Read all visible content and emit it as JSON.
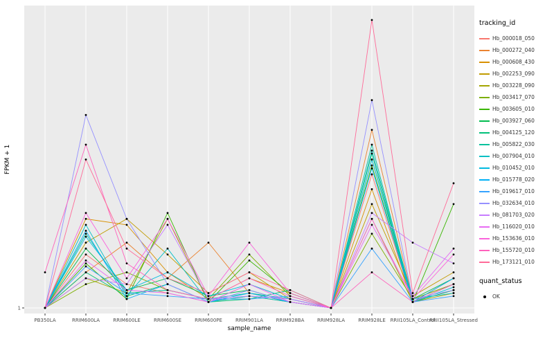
{
  "chart_data": {
    "type": "line",
    "title": "",
    "xlabel": "sample_name",
    "ylabel": "FPKM + 1",
    "y_ticks": [
      "1"
    ],
    "grid": true,
    "legend_position": "right",
    "note": "values are relative heights above the y=1 baseline (only tick labeled on axis), 0 = baseline, 1 = panel top",
    "colors": {
      "panel_bg": "#EBEBEB",
      "grid": "#FFFFFF",
      "point": "#000000",
      "tick_text": "#4D4D4D"
    },
    "categories": [
      "PB350LA",
      "RRIM600LA",
      "RRIM600LE",
      "RRIM600SE",
      "RRIM600PE",
      "RRIM901LA",
      "RRIM928BA",
      "RRIM928LA",
      "RRIM928LE",
      "RRII105LA_Control",
      "RRII105LA_Stressed"
    ],
    "series": [
      {
        "name": "Hb_000018_050",
        "color": "#F8766D",
        "values": [
          0,
          0.18,
          0.08,
          0.05,
          0.02,
          0.08,
          0.03,
          0,
          0.45,
          0.02,
          0.1
        ]
      },
      {
        "name": "Hb_000272_040",
        "color": "#EA8331",
        "values": [
          0,
          0.12,
          0.22,
          0.1,
          0.22,
          0.05,
          0.02,
          0,
          0.6,
          0.03,
          0.08
        ]
      },
      {
        "name": "Hb_000608_430",
        "color": "#D89000",
        "values": [
          0,
          0.3,
          0.28,
          0.12,
          0.03,
          0.1,
          0.05,
          0,
          0.4,
          0.02,
          0.06
        ]
      },
      {
        "name": "Hb_002253_090",
        "color": "#C09B00",
        "values": [
          0,
          0.22,
          0.3,
          0.18,
          0.05,
          0.12,
          0.03,
          0,
          0.35,
          0.04,
          0.12
        ]
      },
      {
        "name": "Hb_003228_090",
        "color": "#A3A500",
        "values": [
          0,
          0.1,
          0.05,
          0.3,
          0.02,
          0.04,
          0.02,
          0,
          0.3,
          0.02,
          0.05
        ]
      },
      {
        "name": "Hb_003417_070",
        "color": "#7CAE00",
        "values": [
          0,
          0.08,
          0.12,
          0.06,
          0.03,
          0.18,
          0.04,
          0,
          0.25,
          0.03,
          0.08
        ]
      },
      {
        "name": "Hb_003605_010",
        "color": "#39B600",
        "values": [
          0,
          0.15,
          0.03,
          0.32,
          0.02,
          0.16,
          0.05,
          0,
          0.48,
          0.02,
          0.35
        ]
      },
      {
        "name": "Hb_003927_060",
        "color": "#00BB4E",
        "values": [
          0,
          0.2,
          0.06,
          0.1,
          0.04,
          0.06,
          0.02,
          0,
          0.5,
          0.03,
          0.1
        ]
      },
      {
        "name": "Hb_004125_120",
        "color": "#00C079",
        "values": [
          0,
          0.12,
          0.04,
          0.08,
          0.02,
          0.03,
          0.06,
          0,
          0.52,
          0.02,
          0.06
        ]
      },
      {
        "name": "Hb_005822_030",
        "color": "#00C19C",
        "values": [
          0,
          0.25,
          0.05,
          0.06,
          0.03,
          0.05,
          0.03,
          0,
          0.55,
          0.02,
          0.08
        ]
      },
      {
        "name": "Hb_007904_010",
        "color": "#00BFC4",
        "values": [
          0,
          0.28,
          0.04,
          0.2,
          0.02,
          0.04,
          0.02,
          0,
          0.53,
          0.03,
          0.05
        ]
      },
      {
        "name": "Hb_010452_010",
        "color": "#00BAE0",
        "values": [
          0,
          0.24,
          0.06,
          0.12,
          0.04,
          0.08,
          0.03,
          0,
          0.5,
          0.02,
          0.07
        ]
      },
      {
        "name": "Hb_015778_020",
        "color": "#00B0F6",
        "values": [
          0,
          0.26,
          0.03,
          0.08,
          0.02,
          0.05,
          0.02,
          0,
          0.47,
          0.02,
          0.1
        ]
      },
      {
        "name": "Hb_019617_010",
        "color": "#35A2FF",
        "values": [
          0,
          0.14,
          0.05,
          0.04,
          0.03,
          0.03,
          0.04,
          0,
          0.2,
          0.02,
          0.04
        ]
      },
      {
        "name": "Hb_032634_010",
        "color": "#9590FF",
        "values": [
          0,
          0.65,
          0.3,
          0.08,
          0.02,
          0.06,
          0.02,
          0,
          0.7,
          0.03,
          0.06
        ]
      },
      {
        "name": "Hb_081703_020",
        "color": "#C77CFF",
        "values": [
          0,
          0.1,
          0.08,
          0.28,
          0.03,
          0.04,
          0.03,
          0,
          0.32,
          0.22,
          0.15
        ]
      },
      {
        "name": "Hb_116020_010",
        "color": "#E76BF3",
        "values": [
          0,
          0.16,
          0.06,
          0.05,
          0.02,
          0.08,
          0.02,
          0,
          0.28,
          0.04,
          0.2
        ]
      },
      {
        "name": "Hb_153636_010",
        "color": "#FA62DB",
        "values": [
          0,
          0.32,
          0.1,
          0.3,
          0.04,
          0.22,
          0.05,
          0,
          0.3,
          0.03,
          0.18
        ]
      },
      {
        "name": "Hb_155720_010",
        "color": "#FF62BC",
        "values": [
          0.12,
          0.55,
          0.15,
          0.06,
          0.03,
          0.1,
          0.04,
          0,
          0.12,
          0.02,
          0.08
        ]
      },
      {
        "name": "Hb_173121_010",
        "color": "#FF6A98",
        "values": [
          0,
          0.5,
          0.2,
          0.1,
          0.05,
          0.12,
          0.06,
          0,
          0.97,
          0.05,
          0.42
        ]
      }
    ]
  },
  "legend": {
    "tracking_title": "tracking_id",
    "quant_title": "quant_status",
    "quant_value": "OK"
  }
}
